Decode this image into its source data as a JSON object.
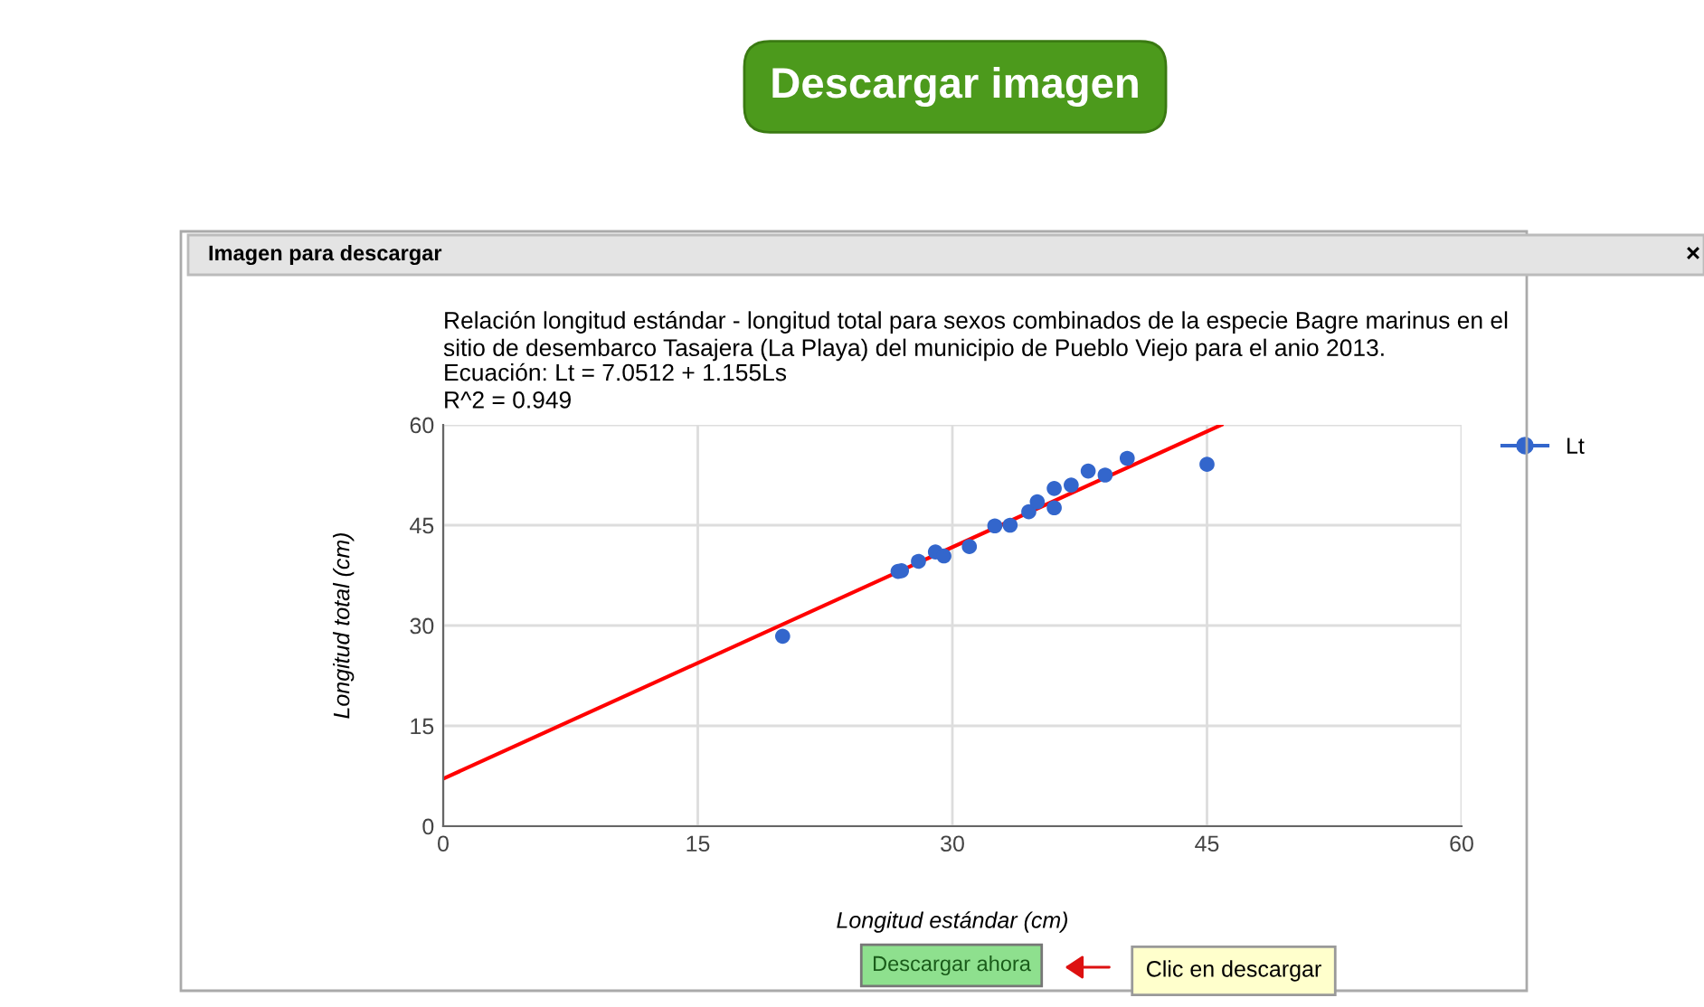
{
  "chart_data": {
    "type": "scatter",
    "title": "Relación longitud estándar - longitud total para sexos combinados de la especie Bagre marinus en el\nsitio de desembarco Tasajera (La Playa) del municipio de Pueblo Viejo para el anio 2013.",
    "subtitle": "Ecuación: Lt = 7.0512 + 1.155Ls\nR^2 = 0.949",
    "xlabel": "Longitud estándar (cm)",
    "ylabel": "Longitud total (cm)",
    "annotations": [
      "Descargar imagen",
      "Imagen para descargar",
      "×",
      "Descargar ahora",
      "Clic en descargar"
    ],
    "series": [
      {
        "name": "Lt",
        "marker": "circle",
        "color": "#3366cc",
        "x": [
          20.0,
          26.8,
          27.0,
          28.0,
          29.0,
          29.5,
          31.0,
          32.5,
          33.4,
          34.5,
          35.0,
          36.0,
          36.0,
          37.0,
          38.0,
          39.0,
          40.3,
          45.0
        ],
        "values": [
          28.4,
          38.1,
          38.2,
          39.6,
          41.0,
          40.4,
          41.8,
          44.9,
          45.0,
          47.0,
          48.5,
          47.6,
          50.5,
          51.0,
          53.1,
          52.5,
          55.0,
          54.1
        ]
      },
      {
        "type": "line",
        "color": "#ff0000",
        "x": [
          0,
          45.85
        ],
        "values": [
          7.1,
          60.0
        ]
      }
    ],
    "xlim": [
      0,
      60
    ],
    "xticks": [
      0,
      15,
      30,
      45,
      60
    ],
    "ylim": [
      0,
      60
    ],
    "yticks": [
      0,
      15,
      30,
      45,
      60
    ],
    "grid": true,
    "legend": "right"
  }
}
